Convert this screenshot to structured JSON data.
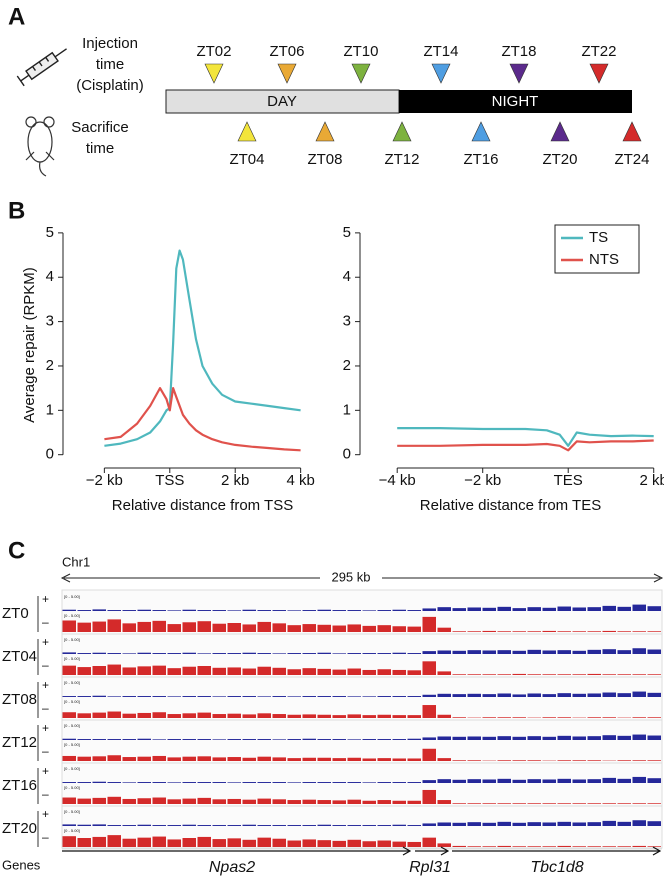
{
  "panel_labels": [
    "A",
    "B",
    "C"
  ],
  "panel_a": {
    "injection_label": [
      "Injection",
      "time",
      "(Cisplatin)"
    ],
    "sacrifice_label": [
      "Sacrifice",
      "time"
    ],
    "day": "DAY",
    "night": "NIGHT",
    "injection_times": [
      {
        "label": "ZT02",
        "color": "#f3e53b"
      },
      {
        "label": "ZT06",
        "color": "#e9a935"
      },
      {
        "label": "ZT10",
        "color": "#7db23f"
      },
      {
        "label": "ZT14",
        "color": "#4f9ee2"
      },
      {
        "label": "ZT18",
        "color": "#5b2a8c"
      },
      {
        "label": "ZT22",
        "color": "#d42b2b"
      }
    ],
    "sacrifice_times": [
      {
        "label": "ZT04",
        "color": "#f3e53b"
      },
      {
        "label": "ZT08",
        "color": "#e9a935"
      },
      {
        "label": "ZT12",
        "color": "#7db23f"
      },
      {
        "label": "ZT16",
        "color": "#4f9ee2"
      },
      {
        "label": "ZT20",
        "color": "#5b2a8c"
      },
      {
        "label": "ZT24",
        "color": "#d42b2b"
      }
    ]
  },
  "chart_data": [
    {
      "type": "line",
      "ylabel": "Average repair (RPKM)",
      "xlabel": "Relative distance from TSS",
      "x": [
        -2,
        -1.5,
        -1,
        -0.6,
        -0.3,
        -0.1,
        0,
        0.1,
        0.2,
        0.3,
        0.4,
        0.6,
        0.8,
        1,
        1.3,
        1.6,
        2,
        2.5,
        3,
        3.5,
        4
      ],
      "series": [
        {
          "name": "TS",
          "color": "#4fb8be",
          "values": [
            0.2,
            0.25,
            0.35,
            0.5,
            0.75,
            1.0,
            1.05,
            2.5,
            4.2,
            4.6,
            4.4,
            3.5,
            2.6,
            2.0,
            1.6,
            1.35,
            1.2,
            1.15,
            1.1,
            1.05,
            1.0
          ]
        },
        {
          "name": "NTS",
          "color": "#e0524c",
          "values": [
            0.35,
            0.4,
            0.7,
            1.1,
            1.5,
            1.25,
            1.0,
            1.5,
            1.3,
            1.1,
            0.9,
            0.7,
            0.55,
            0.45,
            0.35,
            0.28,
            0.22,
            0.18,
            0.15,
            0.12,
            0.1
          ]
        }
      ],
      "xlim": [
        -2.5,
        4.5
      ],
      "xticks": [
        {
          "value": -2,
          "label": "−2 kb"
        },
        {
          "value": 0,
          "label": "TSS"
        },
        {
          "value": 2,
          "label": "2 kb"
        },
        {
          "value": 4,
          "label": "4 kb"
        }
      ],
      "ylim": [
        -0.3,
        5.2
      ],
      "yticks": [
        0,
        1,
        2,
        3,
        4,
        5
      ]
    },
    {
      "type": "line",
      "xlabel": "Relative distance from TES",
      "x": [
        -4,
        -3,
        -2,
        -1,
        -0.5,
        -0.2,
        0,
        0.2,
        0.5,
        1,
        1.5,
        2
      ],
      "series": [
        {
          "name": "TS",
          "color": "#4fb8be",
          "values": [
            0.6,
            0.6,
            0.58,
            0.58,
            0.55,
            0.45,
            0.2,
            0.5,
            0.45,
            0.42,
            0.43,
            0.42
          ]
        },
        {
          "name": "NTS",
          "color": "#e0524c",
          "values": [
            0.2,
            0.2,
            0.22,
            0.22,
            0.24,
            0.2,
            0.1,
            0.3,
            0.28,
            0.3,
            0.3,
            0.32
          ]
        }
      ],
      "xlim": [
        -4.8,
        2.1
      ],
      "xticks": [
        {
          "value": -4,
          "label": "−4 kb"
        },
        {
          "value": -2,
          "label": "−2 kb"
        },
        {
          "value": 0,
          "label": "TES"
        },
        {
          "value": 2,
          "label": "2 kb"
        }
      ],
      "ylim": [
        -0.3,
        5.2
      ],
      "yticks": [
        0,
        1,
        2,
        3,
        4,
        5
      ],
      "legend": "upper right"
    }
  ],
  "panel_c": {
    "chromosome": "Chr1",
    "span": "295 kb",
    "strands": [
      "+",
      "–"
    ],
    "scale_label": "[0 - 5.00]",
    "ylim": [
      0,
      5
    ],
    "plus_color": "#25289a",
    "minus_color": "#d42a2a",
    "samples": [
      {
        "label": "ZT0",
        "plus": [
          0.4,
          0.3,
          0.5,
          0.3,
          0.3,
          0.4,
          0.3,
          0.2,
          0.4,
          0.3,
          0.3,
          0.2,
          0.4,
          0.3,
          0.3,
          0.2,
          0.3,
          0.4,
          0.3,
          0.3,
          0.2,
          0.3,
          0.4,
          0.3,
          0.8,
          1.2,
          0.9,
          1.1,
          1.0,
          1.3,
          0.9,
          1.2,
          1.0,
          1.4,
          1.1,
          1.2,
          1.6,
          1.3,
          2.0,
          1.5
        ],
        "minus": [
          3.2,
          2.6,
          2.9,
          3.5,
          2.4,
          2.8,
          3.1,
          2.2,
          2.7,
          3.0,
          2.3,
          2.5,
          2.1,
          2.8,
          2.4,
          1.9,
          2.2,
          2.0,
          1.8,
          2.1,
          1.7,
          1.9,
          1.6,
          1.5,
          4.2,
          1.2,
          0.2,
          0.2,
          0.3,
          0.2,
          0.2,
          0.2,
          0.3,
          0.2,
          0.2,
          0.2,
          0.3,
          0.2,
          0.2,
          0.2
        ]
      },
      {
        "label": "ZT04",
        "plus": [
          0.5,
          0.3,
          0.4,
          0.3,
          0.2,
          0.4,
          0.3,
          0.3,
          0.4,
          0.2,
          0.3,
          0.3,
          0.4,
          0.3,
          0.2,
          0.3,
          0.3,
          0.4,
          0.2,
          0.3,
          0.3,
          0.3,
          0.4,
          0.3,
          0.9,
          1.1,
          1.0,
          1.2,
          1.1,
          1.2,
          1.0,
          1.3,
          1.1,
          1.2,
          1.0,
          1.3,
          1.5,
          1.2,
          1.8,
          1.4
        ],
        "minus": [
          2.6,
          2.2,
          2.5,
          2.9,
          2.1,
          2.4,
          2.6,
          1.9,
          2.3,
          2.5,
          2.0,
          2.1,
          1.8,
          2.3,
          2.0,
          1.6,
          1.9,
          1.7,
          1.5,
          1.8,
          1.4,
          1.6,
          1.4,
          1.3,
          3.8,
          1.0,
          0.2,
          0.2,
          0.2,
          0.2,
          0.3,
          0.2,
          0.2,
          0.2,
          0.2,
          0.3,
          0.2,
          0.2,
          0.2,
          0.2
        ]
      },
      {
        "label": "ZT08",
        "plus": [
          0.3,
          0.3,
          0.4,
          0.2,
          0.3,
          0.3,
          0.3,
          0.2,
          0.3,
          0.3,
          0.2,
          0.3,
          0.3,
          0.2,
          0.3,
          0.2,
          0.3,
          0.3,
          0.3,
          0.2,
          0.2,
          0.3,
          0.3,
          0.3,
          0.7,
          1.0,
          0.9,
          1.0,
          0.9,
          1.1,
          0.8,
          1.1,
          0.9,
          1.2,
          1.0,
          1.1,
          1.4,
          1.2,
          1.7,
          1.3
        ],
        "minus": [
          1.6,
          1.3,
          1.5,
          1.8,
          1.2,
          1.4,
          1.6,
          1.1,
          1.3,
          1.5,
          1.1,
          1.2,
          1.0,
          1.3,
          1.1,
          0.9,
          1.0,
          0.9,
          0.8,
          1.0,
          0.8,
          0.9,
          0.8,
          0.8,
          3.6,
          0.9,
          0.2,
          0.1,
          0.2,
          0.2,
          0.2,
          0.1,
          0.2,
          0.2,
          0.1,
          0.2,
          0.2,
          0.1,
          0.2,
          0.2
        ]
      },
      {
        "label": "ZT12",
        "plus": [
          0.4,
          0.3,
          0.3,
          0.3,
          0.3,
          0.4,
          0.2,
          0.3,
          0.3,
          0.3,
          0.2,
          0.3,
          0.3,
          0.3,
          0.2,
          0.3,
          0.4,
          0.3,
          0.3,
          0.2,
          0.3,
          0.3,
          0.3,
          0.4,
          0.8,
          1.1,
          1.0,
          1.1,
          1.0,
          1.2,
          1.0,
          1.2,
          1.0,
          1.3,
          1.1,
          1.2,
          1.5,
          1.3,
          1.7,
          1.4
        ],
        "minus": [
          1.4,
          1.2,
          1.3,
          1.6,
          1.1,
          1.2,
          1.4,
          1.0,
          1.2,
          1.3,
          1.0,
          1.1,
          0.9,
          1.2,
          1.0,
          0.8,
          0.9,
          0.9,
          0.8,
          0.9,
          0.7,
          0.8,
          0.7,
          0.7,
          3.4,
          0.8,
          0.2,
          0.2,
          0.1,
          0.2,
          0.2,
          0.2,
          0.1,
          0.2,
          0.2,
          0.2,
          0.1,
          0.2,
          0.2,
          0.2
        ]
      },
      {
        "label": "ZT16",
        "plus": [
          0.3,
          0.3,
          0.4,
          0.3,
          0.2,
          0.3,
          0.3,
          0.2,
          0.3,
          0.3,
          0.3,
          0.2,
          0.3,
          0.3,
          0.3,
          0.2,
          0.3,
          0.3,
          0.3,
          0.3,
          0.2,
          0.3,
          0.3,
          0.3,
          0.9,
          1.2,
          1.0,
          1.2,
          1.1,
          1.3,
          1.0,
          1.2,
          1.1,
          1.3,
          1.1,
          1.2,
          1.6,
          1.3,
          1.9,
          1.5
        ],
        "minus": [
          1.8,
          1.5,
          1.7,
          2.0,
          1.4,
          1.6,
          1.8,
          1.3,
          1.5,
          1.7,
          1.3,
          1.4,
          1.2,
          1.5,
          1.3,
          1.1,
          1.2,
          1.1,
          1.0,
          1.2,
          0.9,
          1.1,
          0.9,
          0.9,
          3.9,
          1.1,
          0.2,
          0.2,
          0.2,
          0.2,
          0.2,
          0.2,
          0.2,
          0.2,
          0.2,
          0.2,
          0.2,
          0.2,
          0.2,
          0.2
        ]
      },
      {
        "label": "ZT20",
        "plus": [
          0.5,
          0.4,
          0.5,
          0.3,
          0.3,
          0.4,
          0.3,
          0.3,
          0.4,
          0.3,
          0.3,
          0.3,
          0.4,
          0.3,
          0.3,
          0.3,
          0.3,
          0.4,
          0.3,
          0.3,
          0.3,
          0.3,
          0.4,
          0.3,
          0.8,
          1.1,
          1.0,
          1.2,
          1.0,
          1.3,
          1.0,
          1.2,
          1.1,
          1.3,
          1.1,
          1.2,
          1.6,
          1.3,
          1.8,
          1.5
        ],
        "minus": [
          3.0,
          2.5,
          2.8,
          3.3,
          2.3,
          2.6,
          2.9,
          2.1,
          2.5,
          2.8,
          2.2,
          2.4,
          2.0,
          2.6,
          2.3,
          1.8,
          2.1,
          1.9,
          1.7,
          2.0,
          1.6,
          1.8,
          1.5,
          1.4,
          2.6,
          1.0,
          0.3,
          0.2,
          0.2,
          0.3,
          0.2,
          0.2,
          0.2,
          0.3,
          0.2,
          0.2,
          0.2,
          0.2,
          0.3,
          0.2
        ]
      }
    ],
    "genes_label": "Genes",
    "genes": [
      "Npas2",
      "Rpl31",
      "Tbc1d8"
    ]
  }
}
